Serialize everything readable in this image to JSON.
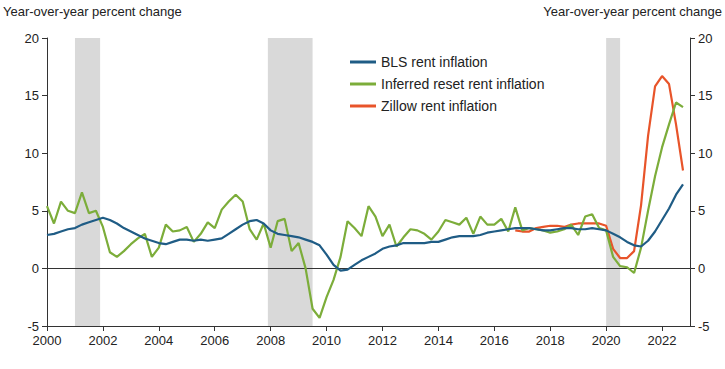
{
  "chart_data": {
    "type": "line",
    "y_label": "Year-over-year percent change",
    "y2_label": "Year-over-year percent change",
    "x": [
      2000,
      2000.25,
      2000.5,
      2000.75,
      2001,
      2001.25,
      2001.5,
      2001.75,
      2002,
      2002.25,
      2002.5,
      2002.75,
      2003,
      2003.25,
      2003.5,
      2003.75,
      2004,
      2004.25,
      2004.5,
      2004.75,
      2005,
      2005.25,
      2005.5,
      2005.75,
      2006,
      2006.25,
      2006.5,
      2006.75,
      2007,
      2007.25,
      2007.5,
      2007.75,
      2008,
      2008.25,
      2008.5,
      2008.75,
      2009,
      2009.25,
      2009.5,
      2009.75,
      2010,
      2010.25,
      2010.5,
      2010.75,
      2011,
      2011.25,
      2011.5,
      2011.75,
      2012,
      2012.25,
      2012.5,
      2012.75,
      2013,
      2013.25,
      2013.5,
      2013.75,
      2014,
      2014.25,
      2014.5,
      2014.75,
      2015,
      2015.25,
      2015.5,
      2015.75,
      2016,
      2016.25,
      2016.5,
      2016.75,
      2017,
      2017.25,
      2017.5,
      2017.75,
      2018,
      2018.25,
      2018.5,
      2018.75,
      2019,
      2019.25,
      2019.5,
      2019.75,
      2020,
      2020.25,
      2020.5,
      2020.75,
      2021,
      2021.25,
      2021.5,
      2021.75,
      2022,
      2022.25,
      2022.5,
      2022.75
    ],
    "series": [
      {
        "name": "BLS rent inflation",
        "color": "#1f5c85",
        "values": [
          2.9,
          3.0,
          3.2,
          3.4,
          3.5,
          3.8,
          4.0,
          4.2,
          4.4,
          4.2,
          3.9,
          3.5,
          3.2,
          2.9,
          2.6,
          2.4,
          2.2,
          2.1,
          2.3,
          2.5,
          2.5,
          2.4,
          2.5,
          2.4,
          2.5,
          2.6,
          3.0,
          3.4,
          3.8,
          4.1,
          4.2,
          3.9,
          3.3,
          3.0,
          2.9,
          2.8,
          2.7,
          2.5,
          2.3,
          2.0,
          1.2,
          0.3,
          -0.2,
          -0.1,
          0.3,
          0.7,
          1.0,
          1.3,
          1.7,
          1.9,
          2.0,
          2.2,
          2.2,
          2.2,
          2.2,
          2.3,
          2.3,
          2.5,
          2.7,
          2.8,
          2.8,
          2.8,
          2.9,
          3.1,
          3.2,
          3.3,
          3.4,
          3.5,
          3.5,
          3.5,
          3.4,
          3.3,
          3.3,
          3.4,
          3.5,
          3.5,
          3.4,
          3.4,
          3.5,
          3.4,
          3.3,
          3.0,
          2.7,
          2.3,
          2.0,
          1.9,
          2.4,
          3.2,
          4.2,
          5.2,
          6.4,
          7.3
        ]
      },
      {
        "name": "Inferred reset rent inflation",
        "color": "#7cad3a",
        "values": [
          5.4,
          3.9,
          5.8,
          5.0,
          4.8,
          6.6,
          4.8,
          5.0,
          3.6,
          1.4,
          1.0,
          1.5,
          2.1,
          2.6,
          3.0,
          1.0,
          1.8,
          3.8,
          3.2,
          3.3,
          3.6,
          2.3,
          3.0,
          4.0,
          3.5,
          5.1,
          5.8,
          6.4,
          5.8,
          3.4,
          2.5,
          3.9,
          1.8,
          4.1,
          4.3,
          1.5,
          2.2,
          0.0,
          -3.5,
          -4.3,
          -2.5,
          -1.0,
          1.0,
          4.1,
          3.5,
          2.8,
          5.4,
          4.5,
          2.8,
          3.8,
          1.9,
          2.7,
          3.4,
          3.3,
          3.0,
          2.5,
          3.2,
          4.2,
          4.0,
          3.8,
          4.4,
          3.0,
          4.5,
          3.8,
          3.8,
          4.3,
          3.2,
          5.3,
          3.3,
          3.5,
          3.4,
          3.3,
          3.1,
          3.2,
          3.4,
          3.8,
          2.9,
          4.5,
          4.7,
          3.5,
          3.3,
          1.0,
          0.2,
          0.1,
          -0.4,
          1.8,
          5.0,
          8.0,
          10.5,
          12.5,
          14.4,
          14.0
        ]
      },
      {
        "name": "Zillow rent inflation",
        "color": "#e8542a",
        "values": [
          null,
          null,
          null,
          null,
          null,
          null,
          null,
          null,
          null,
          null,
          null,
          null,
          null,
          null,
          null,
          null,
          null,
          null,
          null,
          null,
          null,
          null,
          null,
          null,
          null,
          null,
          null,
          null,
          null,
          null,
          null,
          null,
          null,
          null,
          null,
          null,
          null,
          null,
          null,
          null,
          null,
          null,
          null,
          null,
          null,
          null,
          null,
          null,
          null,
          null,
          null,
          null,
          null,
          null,
          null,
          null,
          null,
          null,
          null,
          null,
          null,
          null,
          null,
          null,
          null,
          null,
          null,
          3.3,
          3.2,
          3.2,
          3.5,
          3.6,
          3.7,
          3.7,
          3.6,
          3.8,
          3.9,
          3.9,
          3.9,
          3.9,
          3.7,
          1.7,
          0.9,
          0.9,
          1.5,
          5.5,
          11.5,
          15.8,
          16.7,
          16.0,
          12.5,
          8.5
        ]
      }
    ],
    "recessions": [
      [
        2001.0,
        2001.9
      ],
      [
        2007.9,
        2009.5
      ],
      [
        2020.0,
        2020.5
      ]
    ],
    "reference_line": 0,
    "xlim": [
      2000,
      2023
    ],
    "xticks": [
      2000,
      2002,
      2004,
      2006,
      2008,
      2010,
      2012,
      2014,
      2016,
      2018,
      2020,
      2022
    ],
    "ylim": [
      -5,
      20
    ],
    "yticks": [
      -5,
      0,
      5,
      10,
      15,
      20
    ],
    "y2lim": [
      -5,
      20
    ],
    "y2ticks": [
      -5,
      0,
      5,
      10,
      15,
      20
    ],
    "grid": false,
    "legend": "top"
  }
}
